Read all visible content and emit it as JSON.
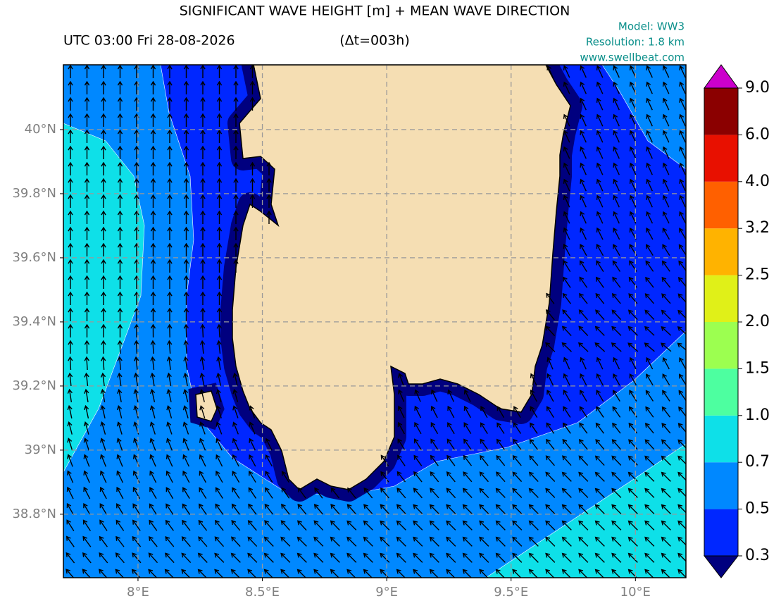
{
  "header": {
    "title": "SIGNIFICANT WAVE HEIGHT [m] + MEAN WAVE DIRECTION",
    "time": "UTC 03:00 Fri 28-08-2026",
    "step": "(Δt=003h)",
    "model": "Model: WW3",
    "resolution": "Resolution: 1.8 km",
    "website": "www.swellbeat.com"
  },
  "map": {
    "lon_range": [
      7.7,
      10.203
    ],
    "lat_range": [
      38.602,
      40.202
    ],
    "lon_ticks": [
      {
        "value": 8,
        "label": "8°E"
      },
      {
        "value": 8.5,
        "label": "8.5°E"
      },
      {
        "value": 9,
        "label": "9°E"
      },
      {
        "value": 9.5,
        "label": "9.5°E"
      },
      {
        "value": 10,
        "label": "10°E"
      }
    ],
    "lat_ticks": [
      {
        "value": 38.8,
        "label": "38.8°N"
      },
      {
        "value": 39,
        "label": "39°N"
      },
      {
        "value": 39.2,
        "label": "39.2°N"
      },
      {
        "value": 39.4,
        "label": "39.4°N"
      },
      {
        "value": 39.6,
        "label": "39.6°N"
      },
      {
        "value": 39.8,
        "label": "39.8°N"
      },
      {
        "value": 40,
        "label": "40°N"
      }
    ],
    "grid": true
  },
  "colorbar": {
    "levels": [
      0.3,
      0.5,
      0.7,
      {
        "value": 1,
        "label": "1.0"
      },
      1.5,
      {
        "value": 2,
        "label": "2.0"
      },
      2.5,
      3.2,
      {
        "value": 4,
        "label": "4.0"
      },
      {
        "value": 6,
        "label": "6.0"
      },
      {
        "value": 9,
        "label": "9.0"
      }
    ],
    "colors": [
      "#0027ff",
      "#0088ff",
      "#0ee0e8",
      "#4dffa0",
      "#9cff50",
      "#e0f018",
      "#ffb300",
      "#ff6000",
      "#e81000",
      "#8b0000"
    ],
    "under_color": "#00007f",
    "over_color": "#cc00cc"
  }
}
